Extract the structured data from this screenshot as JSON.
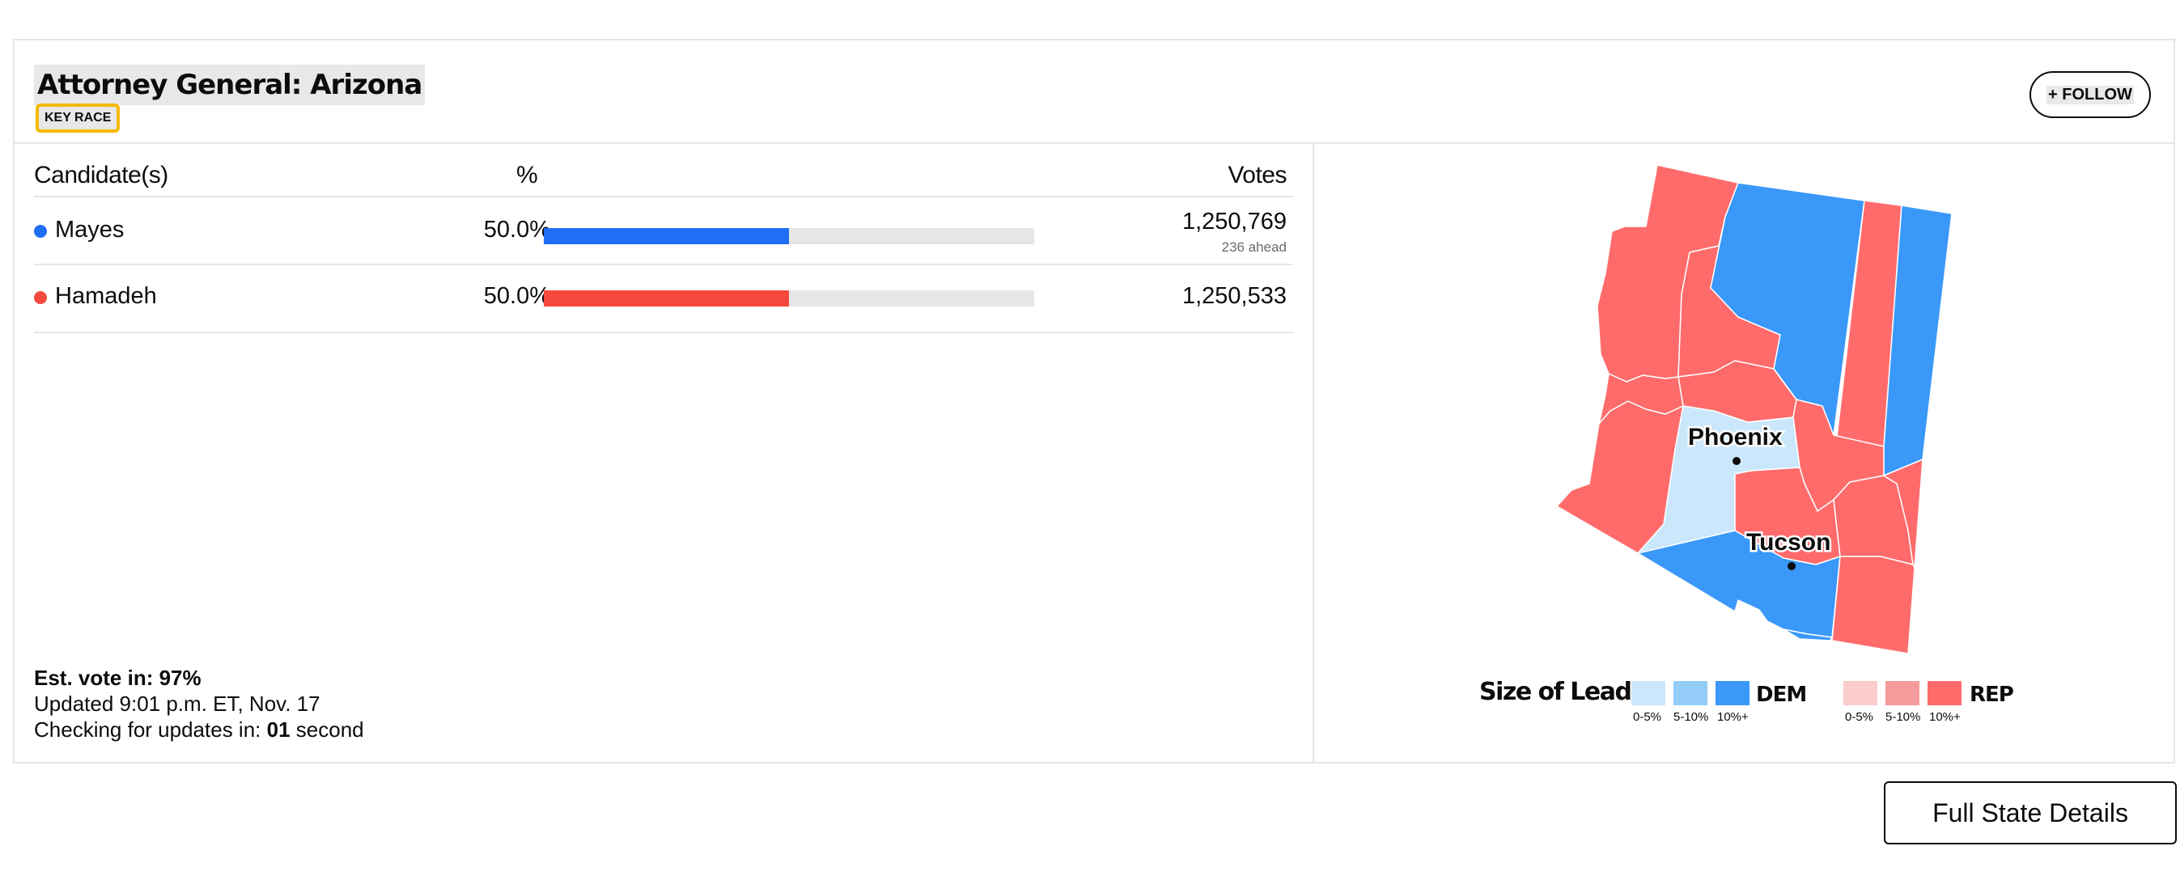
{
  "race": {
    "title": "Attorney General: Arizona",
    "badge": "KEY RACE",
    "follow_label": "+ FOLLOW"
  },
  "table": {
    "headers": {
      "candidate": "Candidate(s)",
      "percent": "%",
      "votes": "Votes"
    },
    "candidates": [
      {
        "name": "Mayes",
        "percent": "50.0%",
        "share": 0.5,
        "votes": "1,250,769",
        "ahead": "236 ahead",
        "color": "#1f6ef5"
      },
      {
        "name": "Hamadeh",
        "percent": "50.0%",
        "share": 0.5,
        "votes": "1,250,533",
        "color": "#f5493d"
      }
    ]
  },
  "status": {
    "est_vote_label": "Est. vote in: 97%",
    "updated": "Updated 9:01 p.m. ET, Nov. 17",
    "checking_prefix": "Checking for updates in: ",
    "checking_value": "01",
    "checking_suffix": " second"
  },
  "map": {
    "cities": [
      "Phoenix",
      "Tucson"
    ],
    "legend": {
      "title": "Size of Lead",
      "dem_label": "DEM",
      "rep_label": "REP",
      "buckets": [
        "0-5%",
        "5-10%",
        "10%+"
      ],
      "dem_colors": [
        "#cbe7fb",
        "#93cdf8",
        "#3a98f9"
      ],
      "rep_colors": [
        "#fbcccc",
        "#f69b9b",
        "#ff6b6b"
      ]
    }
  },
  "footer": {
    "full_state_label": "Full State Details"
  }
}
